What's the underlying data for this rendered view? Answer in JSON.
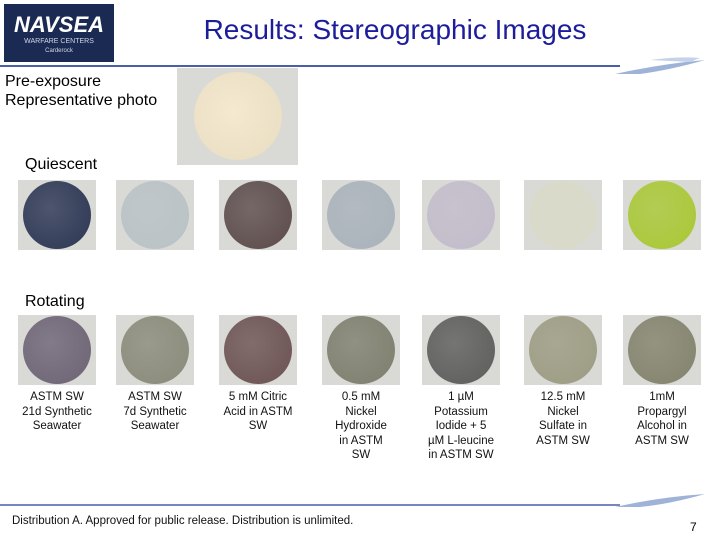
{
  "logo": {
    "name": "NAVSEA",
    "subtitle": "WARFARE CENTERS",
    "site": "Carderock"
  },
  "header": {
    "title": "Results: Stereographic Images"
  },
  "pre_exposure": {
    "lines": [
      "Pre-exposure",
      "Representative photo"
    ]
  },
  "rows": [
    "Quiescent",
    "Rotating"
  ],
  "columns": [
    [
      "ASTM SW",
      "21d Synthetic",
      "Seawater"
    ],
    [
      "ASTM SW",
      "7d Synthetic",
      "Seawater"
    ],
    [
      "5 mM Citric",
      "Acid in ASTM",
      "SW"
    ],
    [
      "0.5 mM",
      "Nickel",
      "Hydroxide",
      "in ASTM",
      "SW"
    ],
    [
      "1 µM",
      "Potassium",
      "Iodide + 5",
      "µM L-leucine",
      "in ASTM SW"
    ],
    [
      "12.5 mM",
      "Nickel",
      "Sulfate in",
      "ASTM SW"
    ],
    [
      "1mM",
      "Propargyl",
      "Alcohol in",
      "ASTM SW"
    ]
  ],
  "footer": {
    "note": "Distribution A. Approved for public release. Distribution is unlimited.",
    "page": "7"
  }
}
